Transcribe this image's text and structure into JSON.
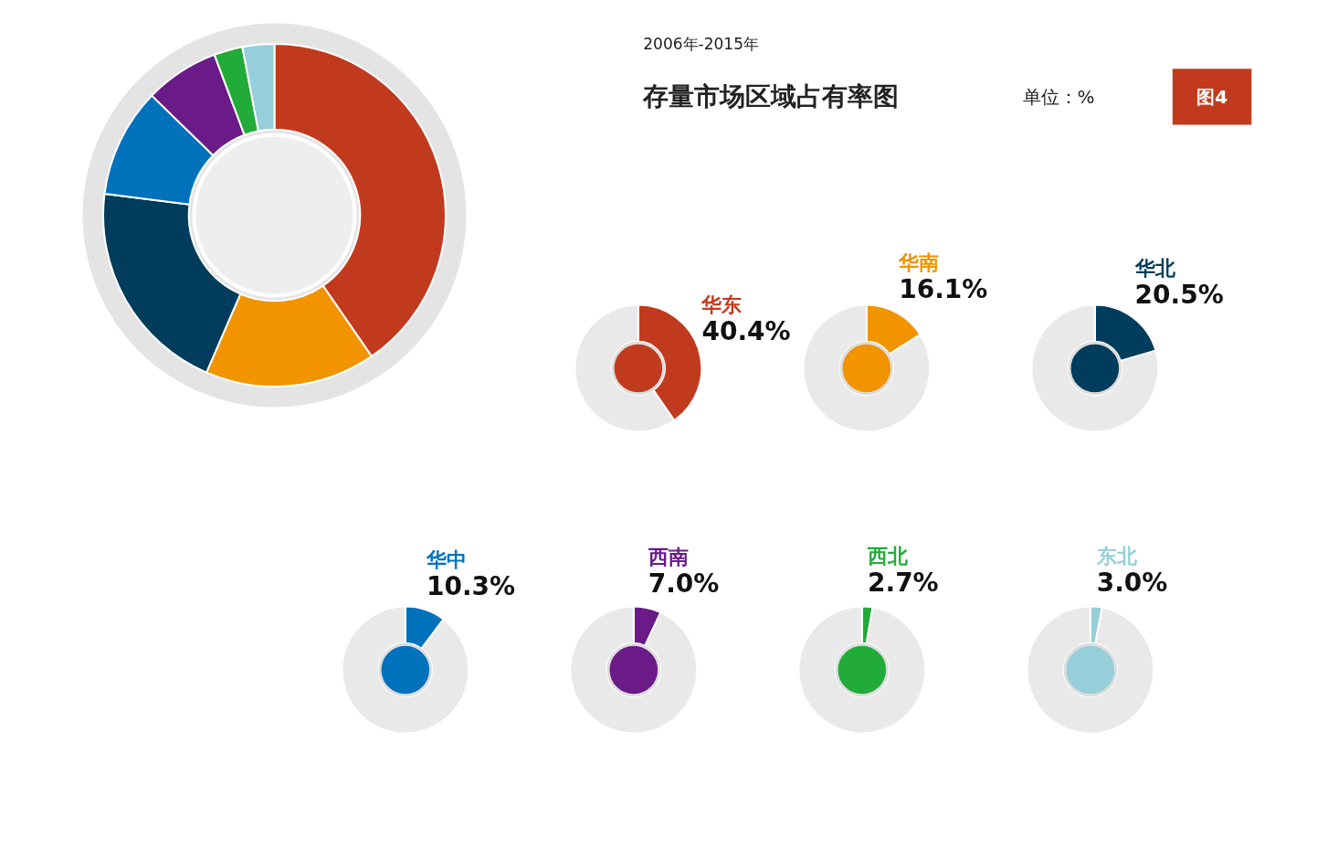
{
  "chart_data": [
    {
      "type": "donut",
      "title": "存量市场区域占有率图",
      "subtitle": "2006年-2015年",
      "annotations": [
        "单位：%",
        "图4"
      ],
      "categories": [
        null,
        null,
        null,
        null,
        null,
        null,
        null
      ],
      "values": [
        40.4,
        16.1,
        20.5,
        10.3,
        7.0,
        2.7,
        3.0
      ],
      "colors": [
        "#c23a1e",
        "#f29400",
        "#003d5c",
        "#0072bc",
        "#6a1b87",
        "#22ab38",
        "#96cfd9"
      ]
    },
    {
      "type": "donut",
      "categories": [
        "华东",
        null
      ],
      "values": [
        40.4,
        59.6
      ],
      "colors": [
        "#c23a1e",
        "#e9e9e9"
      ],
      "value_labels": [
        "40.4%",
        null
      ]
    },
    {
      "type": "donut",
      "categories": [
        "华南",
        null
      ],
      "values": [
        16.1,
        83.9
      ],
      "colors": [
        "#f29400",
        "#e9e9e9"
      ],
      "value_labels": [
        "16.1%",
        null
      ]
    },
    {
      "type": "donut",
      "categories": [
        "华北",
        null
      ],
      "values": [
        20.5,
        79.5
      ],
      "colors": [
        "#003d5c",
        "#e9e9e9"
      ],
      "value_labels": [
        "20.5%",
        null
      ]
    },
    {
      "type": "donut",
      "categories": [
        "华中",
        null
      ],
      "values": [
        10.3,
        89.7
      ],
      "colors": [
        "#0072bc",
        "#e9e9e9"
      ],
      "value_labels": [
        "10.3%",
        null
      ]
    },
    {
      "type": "donut",
      "categories": [
        "西南",
        null
      ],
      "values": [
        7.0,
        93.0
      ],
      "colors": [
        "#6a1b87",
        "#e9e9e9"
      ],
      "value_labels": [
        "7.0%",
        null
      ]
    },
    {
      "type": "donut",
      "categories": [
        "西北",
        null
      ],
      "values": [
        2.7,
        97.3
      ],
      "colors": [
        "#22ab38",
        "#e9e9e9"
      ],
      "value_labels": [
        "2.7%",
        null
      ]
    },
    {
      "type": "donut",
      "categories": [
        "东北",
        null
      ],
      "values": [
        3.0,
        97.0
      ],
      "colors": [
        "#96cfd9",
        "#e9e9e9"
      ],
      "value_labels": [
        "3.0%",
        null
      ]
    }
  ]
}
